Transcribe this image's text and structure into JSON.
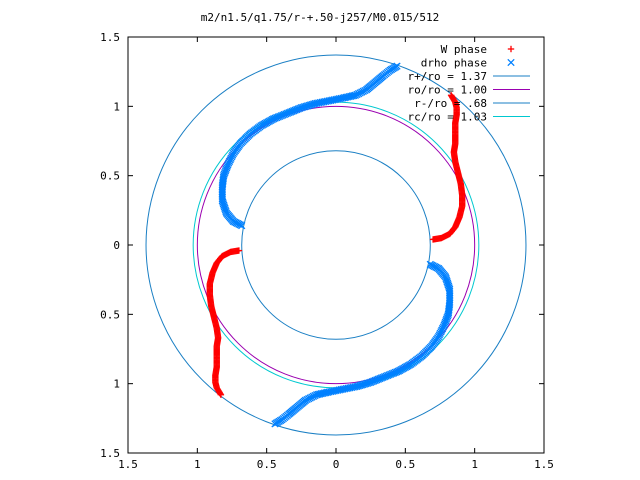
{
  "chart_data": {
    "type": "scatter",
    "title": "m2/n1.5/q1.75/r-+.50-j257/M0.015/512",
    "xlim": [
      -1.5,
      1.5
    ],
    "ylim": [
      -1.5,
      1.5
    ],
    "x_ticks": [
      {
        "value": -1.5,
        "label": "1.5"
      },
      {
        "value": -1.0,
        "label": "1"
      },
      {
        "value": -0.5,
        "label": "0.5"
      },
      {
        "value": 0,
        "label": "0"
      },
      {
        "value": 0.5,
        "label": "0.5"
      },
      {
        "value": 1.0,
        "label": "1"
      },
      {
        "value": 1.5,
        "label": "1.5"
      }
    ],
    "y_ticks": [
      {
        "value": 1.5,
        "label": "1.5"
      },
      {
        "value": 1.0,
        "label": "1"
      },
      {
        "value": 0.5,
        "label": "0.5"
      },
      {
        "value": 0,
        "label": "0"
      },
      {
        "value": -0.5,
        "label": "0.5"
      },
      {
        "value": -1.0,
        "label": "1"
      },
      {
        "value": -1.5,
        "label": "1.5"
      }
    ],
    "legend_position": "top-right",
    "series": [
      {
        "name": "W phase",
        "kind": "points",
        "marker": "plus",
        "color": "#ff0000",
        "points": [
          [
            0.7,
            0.04
          ],
          [
            0.76,
            0.05
          ],
          [
            0.82,
            0.08
          ],
          [
            0.86,
            0.13
          ],
          [
            0.89,
            0.2
          ],
          [
            0.91,
            0.28
          ],
          [
            0.91,
            0.36
          ],
          [
            0.9,
            0.44
          ],
          [
            0.88,
            0.52
          ],
          [
            0.86,
            0.6
          ],
          [
            0.85,
            0.67
          ],
          [
            0.86,
            0.73
          ],
          [
            0.86,
            0.79
          ],
          [
            0.86,
            0.84
          ],
          [
            0.86,
            0.88
          ],
          [
            0.87,
            0.94
          ],
          [
            0.87,
            0.99
          ],
          [
            0.86,
            1.03
          ],
          [
            0.83,
            1.08
          ],
          [
            -0.7,
            -0.04
          ],
          [
            -0.76,
            -0.05
          ],
          [
            -0.82,
            -0.08
          ],
          [
            -0.86,
            -0.13
          ],
          [
            -0.89,
            -0.2
          ],
          [
            -0.91,
            -0.28
          ],
          [
            -0.91,
            -0.36
          ],
          [
            -0.9,
            -0.44
          ],
          [
            -0.88,
            -0.52
          ],
          [
            -0.86,
            -0.6
          ],
          [
            -0.85,
            -0.67
          ],
          [
            -0.86,
            -0.73
          ],
          [
            -0.86,
            -0.79
          ],
          [
            -0.86,
            -0.84
          ],
          [
            -0.86,
            -0.88
          ],
          [
            -0.87,
            -0.94
          ],
          [
            -0.87,
            -0.99
          ],
          [
            -0.86,
            -1.03
          ],
          [
            -0.83,
            -1.08
          ]
        ]
      },
      {
        "name": "drho phase",
        "kind": "points",
        "marker": "cross",
        "color": "#0080ff",
        "points": [
          [
            -0.68,
            0.14
          ],
          [
            -0.74,
            0.17
          ],
          [
            -0.79,
            0.23
          ],
          [
            -0.82,
            0.32
          ],
          [
            -0.82,
            0.42
          ],
          [
            -0.81,
            0.5
          ],
          [
            -0.78,
            0.58
          ],
          [
            -0.74,
            0.66
          ],
          [
            -0.69,
            0.73
          ],
          [
            -0.62,
            0.8
          ],
          [
            -0.54,
            0.86
          ],
          [
            -0.45,
            0.91
          ],
          [
            -0.35,
            0.95
          ],
          [
            -0.25,
            0.99
          ],
          [
            -0.15,
            1.02
          ],
          [
            -0.05,
            1.04
          ],
          [
            0.05,
            1.06
          ],
          [
            0.14,
            1.08
          ],
          [
            0.22,
            1.12
          ],
          [
            0.28,
            1.17
          ],
          [
            0.34,
            1.22
          ],
          [
            0.39,
            1.26
          ],
          [
            0.44,
            1.29
          ],
          [
            0.68,
            -0.14
          ],
          [
            0.74,
            -0.17
          ],
          [
            0.79,
            -0.23
          ],
          [
            0.82,
            -0.32
          ],
          [
            0.82,
            -0.42
          ],
          [
            0.81,
            -0.5
          ],
          [
            0.78,
            -0.58
          ],
          [
            0.74,
            -0.66
          ],
          [
            0.69,
            -0.73
          ],
          [
            0.62,
            -0.8
          ],
          [
            0.54,
            -0.86
          ],
          [
            0.45,
            -0.91
          ],
          [
            0.35,
            -0.95
          ],
          [
            0.25,
            -0.99
          ],
          [
            0.15,
            -1.02
          ],
          [
            0.05,
            -1.04
          ],
          [
            -0.05,
            -1.06
          ],
          [
            -0.14,
            -1.08
          ],
          [
            -0.22,
            -1.12
          ],
          [
            -0.28,
            -1.17
          ],
          [
            -0.34,
            -1.22
          ],
          [
            -0.39,
            -1.26
          ],
          [
            -0.44,
            -1.29
          ]
        ]
      },
      {
        "name": "r+/ro = 1.37",
        "kind": "circle",
        "radius": 1.37,
        "color": "#1a7fc4"
      },
      {
        "name": "ro/ro = 1.00",
        "kind": "circle",
        "radius": 1.0,
        "color": "#9a00b0"
      },
      {
        "name": "r-/ro = .68",
        "kind": "circle",
        "radius": 0.68,
        "color": "#1a7fc4"
      },
      {
        "name": "rc/ro = 1.03",
        "kind": "circle",
        "radius": 1.03,
        "color": "#00c8d0"
      }
    ]
  }
}
